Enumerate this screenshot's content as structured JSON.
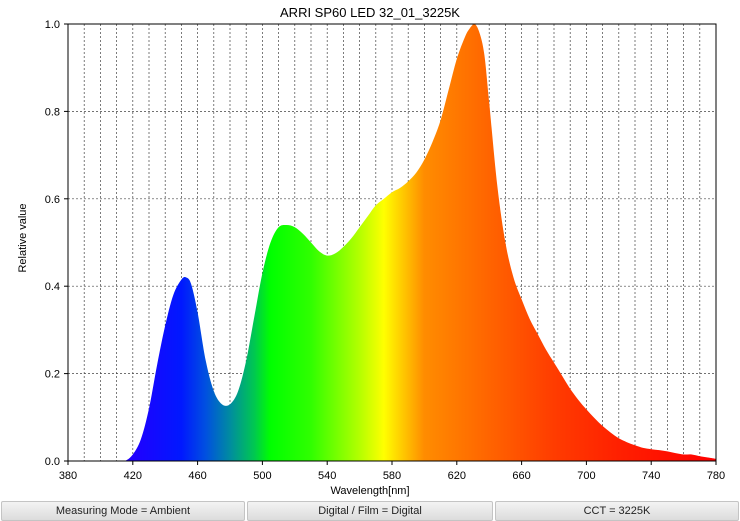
{
  "chart_data": {
    "type": "area",
    "title": "ARRI SP60 LED 32_01_3225K",
    "xlabel": "Wavelength[nm]",
    "ylabel": "Relative value",
    "xlim": [
      380,
      780
    ],
    "ylim": [
      0,
      1.0
    ],
    "x_ticks": [
      "380",
      "420",
      "460",
      "500",
      "540",
      "580",
      "620",
      "660",
      "700",
      "740",
      "780"
    ],
    "y_ticks": [
      "0.0",
      "0.2",
      "0.4",
      "0.6",
      "0.8",
      "1.0"
    ],
    "grid": true,
    "x_grid_step_nm": 10,
    "fill": "visible spectrum gradient",
    "series": [
      {
        "x": [
          380,
          410,
          415,
          420,
          425,
          430,
          435,
          440,
          445,
          450,
          453,
          456,
          460,
          465,
          470,
          475,
          480,
          485,
          490,
          495,
          500,
          505,
          510,
          515,
          520,
          525,
          530,
          535,
          540,
          545,
          550,
          555,
          560,
          565,
          570,
          575,
          580,
          585,
          590,
          595,
          600,
          605,
          610,
          615,
          620,
          625,
          628,
          631,
          634,
          637,
          640,
          645,
          650,
          655,
          660,
          665,
          670,
          675,
          680,
          685,
          690,
          695,
          700,
          705,
          710,
          715,
          720,
          725,
          730,
          735,
          740,
          745,
          750,
          755,
          760,
          765,
          770,
          775,
          780
        ],
        "values": [
          0.0,
          0.0,
          0.0,
          0.015,
          0.05,
          0.12,
          0.22,
          0.31,
          0.38,
          0.415,
          0.42,
          0.405,
          0.34,
          0.23,
          0.16,
          0.13,
          0.13,
          0.16,
          0.23,
          0.33,
          0.43,
          0.5,
          0.535,
          0.54,
          0.535,
          0.52,
          0.5,
          0.48,
          0.47,
          0.475,
          0.49,
          0.51,
          0.535,
          0.56,
          0.585,
          0.6,
          0.615,
          0.625,
          0.64,
          0.66,
          0.69,
          0.73,
          0.78,
          0.85,
          0.92,
          0.97,
          0.99,
          1.0,
          0.98,
          0.93,
          0.82,
          0.63,
          0.5,
          0.42,
          0.37,
          0.325,
          0.29,
          0.255,
          0.225,
          0.195,
          0.165,
          0.14,
          0.118,
          0.098,
          0.08,
          0.065,
          0.052,
          0.043,
          0.036,
          0.03,
          0.027,
          0.025,
          0.022,
          0.018,
          0.015,
          0.015,
          0.011,
          0.008,
          0.005
        ]
      }
    ]
  },
  "status_bar": {
    "measuring_mode": "Measuring Mode = Ambient",
    "digital_film": "Digital / Film = Digital",
    "cct": "CCT = 3225K"
  }
}
